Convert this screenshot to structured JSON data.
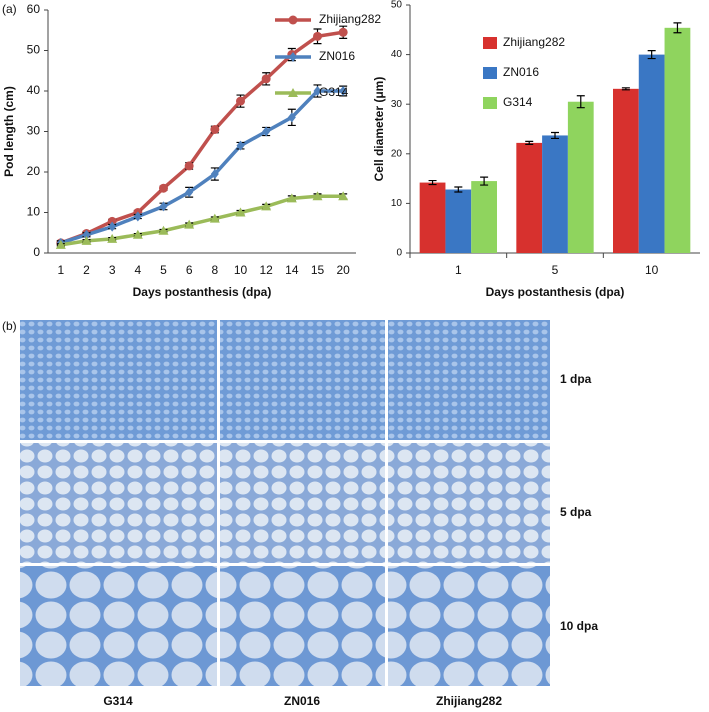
{
  "panel_labels": [
    "(a)",
    "(b)"
  ],
  "chart_data": [
    {
      "type": "line",
      "xlabel": "Days postanthesis (dpa)",
      "ylabel": "Pod length (cm)",
      "categories": [
        "1",
        "2",
        "3",
        "4",
        "5",
        "6",
        "8",
        "10",
        "12",
        "14",
        "15",
        "20"
      ],
      "ylim": [
        0,
        60
      ],
      "yticks": [
        0,
        10,
        20,
        30,
        40,
        50,
        60
      ],
      "series": [
        {
          "name": "Zhijiang282",
          "color": "#c0504d",
          "marker": "circle",
          "values": [
            2.5,
            4.8,
            7.8,
            10,
            16,
            21.5,
            30.5,
            37.5,
            43,
            49,
            53.5,
            54.5
          ],
          "errors": [
            0.5,
            0.5,
            0.5,
            0.5,
            0.5,
            0.8,
            0.8,
            1.5,
            1.5,
            1.5,
            1.8,
            1.5
          ]
        },
        {
          "name": "ZN016",
          "color": "#4f81bd",
          "marker": "diamond",
          "values": [
            2.5,
            4.5,
            6.5,
            9,
            11.5,
            15,
            19.5,
            26.5,
            30,
            33.5,
            40,
            40
          ],
          "errors": [
            0.5,
            0.5,
            0.5,
            0.5,
            0.8,
            1.2,
            1.5,
            0.8,
            1,
            2,
            1.5,
            1.2
          ]
        },
        {
          "name": "G314",
          "color": "#9bbb59",
          "marker": "triangle",
          "values": [
            2,
            3,
            3.5,
            4.5,
            5.5,
            7,
            8.5,
            10,
            11.5,
            13.5,
            14,
            14
          ],
          "errors": [
            0.3,
            0.3,
            0.3,
            0.3,
            0.3,
            0.4,
            0.4,
            0.5,
            0.5,
            0.6,
            0.6,
            0.6
          ]
        }
      ]
    },
    {
      "type": "bar",
      "xlabel": "Days postanthesis (dpa)",
      "ylabel": "Cell diameter (μm)",
      "categories": [
        "1",
        "5",
        "10"
      ],
      "ylim": [
        0,
        50
      ],
      "yticks": [
        0,
        10,
        20,
        30,
        40,
        50
      ],
      "series": [
        {
          "name": "Zhijiang282",
          "color": "#d7312e",
          "values": [
            14.2,
            22.2,
            33.1
          ],
          "errors": [
            0.4,
            0.3,
            0.2
          ]
        },
        {
          "name": "ZN016",
          "color": "#3a77c4",
          "values": [
            12.8,
            23.7,
            40
          ],
          "errors": [
            0.5,
            0.6,
            0.8
          ]
        },
        {
          "name": "G314",
          "color": "#8fd45e",
          "values": [
            14.5,
            30.5,
            45.4
          ],
          "errors": [
            0.8,
            1.2,
            1
          ]
        }
      ]
    }
  ],
  "micrographs": {
    "rows": [
      "1 dpa",
      "5 dpa",
      "10 dpa"
    ],
    "columns": [
      "G314",
      "ZN016",
      "Zhijiang282"
    ]
  }
}
